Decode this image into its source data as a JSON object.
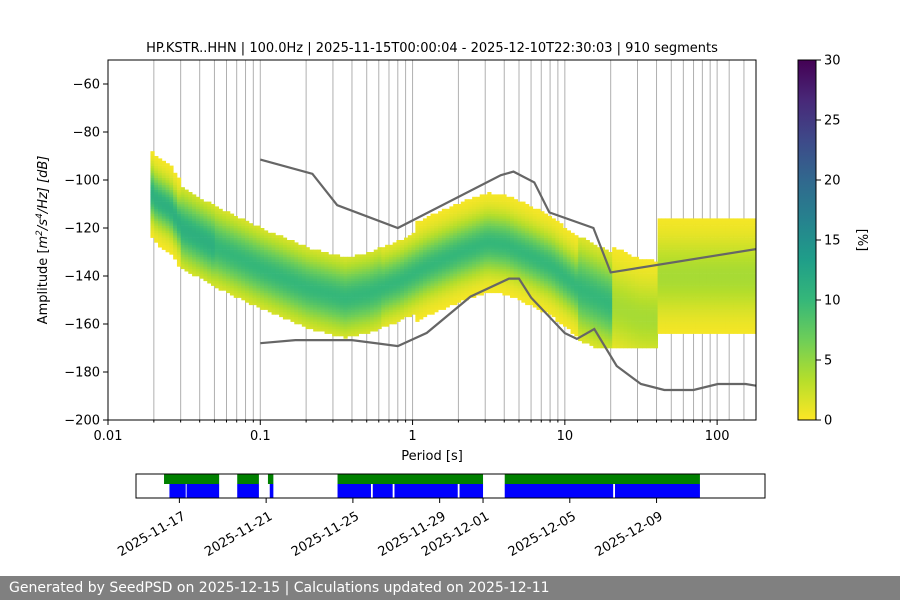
{
  "chart_data": [
    {
      "type": "heatmap",
      "title": "HP.KSTR..HHN | 100.0Hz | 2025-11-15T00:00:04 - 2025-12-10T22:30:03 | 910 segments",
      "xlabel": "Period [s]",
      "ylabel_pre": "Amplitude [",
      "ylabel_m": "m",
      "ylabel_exp1": "2",
      "ylabel_mid": "/s",
      "ylabel_exp2": "4",
      "ylabel_post": "/Hz] [dB]",
      "x_scale": "log",
      "xlim": [
        0.01,
        180
      ],
      "ylim": [
        -200,
        -50
      ],
      "x_ticks": [
        0.01,
        0.1,
        1,
        10,
        100
      ],
      "x_tick_labels": [
        "0.01",
        "0.1",
        "1",
        "10",
        "100"
      ],
      "y_ticks": [
        -200,
        -180,
        -160,
        -140,
        -120,
        -100,
        -80,
        -60
      ],
      "y_tick_labels": [
        "−200",
        "−180",
        "−160",
        "−140",
        "−120",
        "−100",
        "−80",
        "−60"
      ],
      "grid": "vertical lines at period bins",
      "grid_periods": [
        0.02,
        0.03,
        0.04,
        0.05,
        0.06,
        0.07,
        0.08,
        0.09,
        0.1,
        0.2,
        0.3,
        0.4,
        0.5,
        0.6,
        0.7,
        0.8,
        0.9,
        1,
        2,
        3,
        4,
        5,
        6,
        7,
        8,
        9,
        10,
        20,
        30,
        40,
        50,
        60,
        70,
        80,
        90,
        100,
        120,
        150
      ],
      "colorbar": {
        "label": "[%]",
        "range": [
          0,
          30
        ],
        "ticks": [
          0,
          5,
          10,
          15,
          20,
          25,
          30
        ],
        "tick_labels": [
          "0",
          "5",
          "10",
          "15",
          "20",
          "25",
          "30"
        ],
        "colormap": "viridis_r",
        "colors": [
          "#fde725",
          "#b5de2b",
          "#6ece58",
          "#35b779",
          "#1f9e89",
          "#26828e",
          "#31688e",
          "#3e4989",
          "#482878",
          "#440154"
        ]
      },
      "reference_curves": {
        "color": "#666666",
        "nhnm": [
          [
            0.1,
            -91.5
          ],
          [
            0.22,
            -97.4
          ],
          [
            0.32,
            -110.5
          ],
          [
            0.8,
            -120
          ],
          [
            3.8,
            -98
          ],
          [
            4.6,
            -96.5
          ],
          [
            6.3,
            -101
          ],
          [
            7.9,
            -113.5
          ],
          [
            15.4,
            -120
          ],
          [
            20,
            -138.5
          ],
          [
            180,
            -128.8
          ]
        ],
        "nlnm": [
          [
            0.1,
            -168
          ],
          [
            0.17,
            -166.7
          ],
          [
            0.4,
            -166.7
          ],
          [
            0.8,
            -169.2
          ],
          [
            1.24,
            -163.7
          ],
          [
            2.4,
            -148.6
          ],
          [
            4.3,
            -141.1
          ],
          [
            5,
            -141.1
          ],
          [
            6,
            -149
          ],
          [
            10,
            -163.8
          ],
          [
            12,
            -166.2
          ],
          [
            15.6,
            -162.1
          ],
          [
            21.9,
            -177.5
          ],
          [
            31.6,
            -185
          ],
          [
            45,
            -187.5
          ],
          [
            70,
            -187.5
          ],
          [
            101,
            -185
          ],
          [
            154,
            -185
          ],
          [
            180,
            -185.7
          ]
        ]
      },
      "psd_density": {
        "mode_path": [
          [
            0.019,
            -106
          ],
          [
            0.02,
            -108
          ],
          [
            0.025,
            -112
          ],
          [
            0.03,
            -120
          ],
          [
            0.05,
            -128
          ],
          [
            0.1,
            -137
          ],
          [
            0.2,
            -145
          ],
          [
            0.35,
            -149
          ],
          [
            0.5,
            -147
          ],
          [
            0.8,
            -142
          ],
          [
            1.2,
            -136
          ],
          [
            2,
            -130
          ],
          [
            3,
            -126
          ],
          [
            4,
            -127
          ],
          [
            6,
            -132
          ],
          [
            8,
            -136
          ],
          [
            12,
            -145
          ],
          [
            20,
            -152
          ],
          [
            30,
            -157
          ],
          [
            40,
            -158
          ]
        ],
        "notes": "percent occurrence of PSD values per period bin"
      }
    },
    {
      "type": "timeline",
      "x_tick_labels": [
        "2025-11-17",
        "2025-11-21",
        "2025-11-25",
        "2025-11-29",
        "2025-12-01",
        "2025-12-05",
        "2025-12-09"
      ],
      "x_tick_dates": [
        "2025-11-17",
        "2025-11-21",
        "2025-11-25",
        "2025-11-29",
        "2025-12-01",
        "2025-12-05",
        "2025-12-09"
      ],
      "xlim": [
        "2025-11-15",
        "2025-12-14"
      ],
      "colors": {
        "data": "#0000ff",
        "used": "#008000"
      },
      "data_segments": [
        [
          "2025-11-16T13:00",
          "2025-11-17T07:00"
        ],
        [
          "2025-11-17T08:00",
          "2025-11-18T20:00"
        ],
        [
          "2025-11-19T16:00",
          "2025-11-20T16:00"
        ],
        [
          "2025-11-21T04:00",
          "2025-11-21T08:00"
        ],
        [
          "2025-11-24T07:00",
          "2025-11-25T20:00"
        ],
        [
          "2025-11-25T22:00",
          "2025-11-26T20:00"
        ],
        [
          "2025-11-26T22:00",
          "2025-11-29T20:00"
        ],
        [
          "2025-11-29T22:00",
          "2025-12-01T00:00"
        ],
        [
          "2025-12-02T00:00",
          "2025-12-07T00:00"
        ],
        [
          "2025-12-07T02:00",
          "2025-12-11T00:00"
        ]
      ],
      "used_segments": [
        [
          "2025-11-16T07:00",
          "2025-11-18T20:00"
        ],
        [
          "2025-11-19T16:00",
          "2025-11-20T16:00"
        ],
        [
          "2025-11-21T02:00",
          "2025-11-21T08:00"
        ],
        [
          "2025-11-24T07:00",
          "2025-12-01T00:00"
        ],
        [
          "2025-12-02T00:00",
          "2025-12-11T00:00"
        ]
      ]
    }
  ],
  "footer": {
    "text": "Generated by SeedPSD on 2025-12-15 | Calculations updated on 2025-12-11"
  }
}
